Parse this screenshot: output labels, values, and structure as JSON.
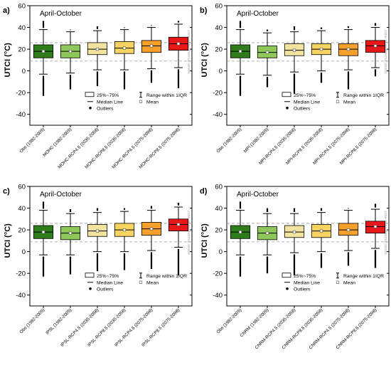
{
  "figure": {
    "axis_title": "UTCI (°C)",
    "yticks": [
      -40,
      -20,
      0,
      20,
      40,
      60
    ],
    "legend": {
      "box": "25%~75%",
      "median": "Median Line",
      "outliers": "Outliers",
      "range": "Range within 1IQR",
      "mean": "Mean"
    },
    "side_note": "zone of no thermal stress",
    "colors": {
      "obs": "#2e7d1a",
      "hist": "#8fc85a",
      "rcp45_2035": "#f3e3a0",
      "rcp85_2035": "#f7d462",
      "rcp45_2075": "#f5a02a",
      "rcp85_2075": "#e81818"
    }
  },
  "chart_data": [
    {
      "type": "box",
      "panel": "a)",
      "title": "April-October",
      "ylabel": "UTCI (°C)",
      "ylim": [
        -50,
        60
      ],
      "reference_lines": [
        9,
        26
      ],
      "categories": [
        "Obs (1982-2005)",
        "MOHC (1982-2005)",
        "MOHC-RCP4.5 (2035-2058)",
        "MOHC-RCP8.5 (2035-2058)",
        "MOHC-RCP4.5 (2075-2098)",
        "MOHC-RCP8.5 (2075-2098)"
      ],
      "series": [
        {
          "q1": 12,
          "median": 18,
          "q3": 24,
          "mean": 18,
          "whisker_low": -3,
          "whisker_high": 38,
          "outlier_min": -23,
          "outlier_max": 46
        },
        {
          "q1": 12,
          "median": 18,
          "q3": 24,
          "mean": 18,
          "whisker_low": -2,
          "whisker_high": 36,
          "outlier_min": -17,
          "outlier_max": 38
        },
        {
          "q1": 15,
          "median": 20,
          "q3": 26,
          "mean": 20,
          "whisker_low": 1,
          "whisker_high": 37,
          "outlier_min": -14,
          "outlier_max": 41
        },
        {
          "q1": 16,
          "median": 21,
          "q3": 27,
          "mean": 21,
          "whisker_low": 1,
          "whisker_high": 38,
          "outlier_min": -17,
          "outlier_max": 40
        },
        {
          "q1": 17,
          "median": 23,
          "q3": 28,
          "mean": 23,
          "whisker_low": 2,
          "whisker_high": 40,
          "outlier_min": -11,
          "outlier_max": 42
        },
        {
          "q1": 19,
          "median": 25,
          "q3": 31,
          "mean": 25,
          "whisker_low": 3,
          "whisker_high": 43,
          "outlier_min": -16,
          "outlier_max": 46
        }
      ]
    },
    {
      "type": "box",
      "panel": "b)",
      "title": "April-October",
      "ylabel": "UTCI (°C)",
      "ylim": [
        -50,
        60
      ],
      "reference_lines": [
        9,
        26
      ],
      "categories": [
        "Obs (1982-2005)",
        "MPI (1982-2005)",
        "MPI-RCP4.5 (2035-2058)",
        "MPI-RCP8.5 (2035-2058)",
        "MPI-RCP4.5 (2075-2098)",
        "MPI-RCP8.5 (2075-2098)"
      ],
      "series": [
        {
          "q1": 12,
          "median": 18,
          "q3": 24,
          "mean": 18,
          "whisker_low": -3,
          "whisker_high": 38,
          "outlier_min": -23,
          "outlier_max": 46
        },
        {
          "q1": 12,
          "median": 17,
          "q3": 23,
          "mean": 17,
          "whisker_low": -4,
          "whisker_high": 35,
          "outlier_min": -15,
          "outlier_max": 38
        },
        {
          "q1": 14,
          "median": 19,
          "q3": 25,
          "mean": 19,
          "whisker_low": -1,
          "whisker_high": 36,
          "outlier_min": -21,
          "outlier_max": 41
        },
        {
          "q1": 15,
          "median": 20,
          "q3": 25,
          "mean": 20,
          "whisker_low": 0,
          "whisker_high": 37,
          "outlier_min": -11,
          "outlier_max": 40
        },
        {
          "q1": 14,
          "median": 20,
          "q3": 25,
          "mean": 20,
          "whisker_low": 1,
          "whisker_high": 38,
          "outlier_min": -17,
          "outlier_max": 41
        },
        {
          "q1": 17,
          "median": 23,
          "q3": 28,
          "mean": 23,
          "whisker_low": 3,
          "whisker_high": 40,
          "outlier_min": -5,
          "outlier_max": 44
        }
      ]
    },
    {
      "type": "box",
      "panel": "c)",
      "title": "April-October",
      "ylabel": "UTCI (°C)",
      "ylim": [
        -50,
        60
      ],
      "reference_lines": [
        9,
        26
      ],
      "categories": [
        "Obs (1982-2005)",
        "IPSL (1982-2005)",
        "IPSL-RCP4.5 (2035-2058)",
        "IPSL-RCP8.5 (2035-2058)",
        "IPSL-RCP4.5 (2075-2098)",
        "IPSL-RCP8.5 (2075-2098)"
      ],
      "series": [
        {
          "q1": 12,
          "median": 18,
          "q3": 24,
          "mean": 18,
          "whisker_low": -3,
          "whisker_high": 38,
          "outlier_min": -23,
          "outlier_max": 46
        },
        {
          "q1": 11,
          "median": 17,
          "q3": 23,
          "mean": 17,
          "whisker_low": -3,
          "whisker_high": 35,
          "outlier_min": -21,
          "outlier_max": 39
        },
        {
          "q1": 14,
          "median": 19,
          "q3": 25,
          "mean": 19,
          "whisker_low": 0,
          "whisker_high": 36,
          "outlier_min": -18,
          "outlier_max": 40
        },
        {
          "q1": 14,
          "median": 20,
          "q3": 26,
          "mean": 20,
          "whisker_low": 0,
          "whisker_high": 37,
          "outlier_min": -17,
          "outlier_max": 40
        },
        {
          "q1": 15,
          "median": 21,
          "q3": 27,
          "mean": 21,
          "whisker_low": 1,
          "whisker_high": 38,
          "outlier_min": -16,
          "outlier_max": 42
        },
        {
          "q1": 19,
          "median": 25,
          "q3": 30,
          "mean": 25,
          "whisker_low": 4,
          "whisker_high": 41,
          "outlier_min": -22,
          "outlier_max": 45
        }
      ]
    },
    {
      "type": "box",
      "panel": "d)",
      "title": "April-October",
      "ylabel": "UTCI (°C)",
      "ylim": [
        -50,
        60
      ],
      "reference_lines": [
        9,
        26
      ],
      "categories": [
        "Obs (1982-2005)",
        "CNRM (1982-2005)",
        "CNRM-RCP4.5 (2035-2058)",
        "CNRM-RCP8.5 (2035-2058)",
        "CNRM-RCP4.5 (2075-2098)",
        "CNRM-RCP8.5 (2075-2098)"
      ],
      "series": [
        {
          "q1": 12,
          "median": 18,
          "q3": 24,
          "mean": 18,
          "whisker_low": -3,
          "whisker_high": 38,
          "outlier_min": -23,
          "outlier_max": 46
        },
        {
          "q1": 11,
          "median": 17,
          "q3": 23,
          "mean": 17,
          "whisker_low": -3,
          "whisker_high": 35,
          "outlier_min": -20,
          "outlier_max": 40
        },
        {
          "q1": 13,
          "median": 18,
          "q3": 24,
          "mean": 18,
          "whisker_low": -1,
          "whisker_high": 35,
          "outlier_min": -22,
          "outlier_max": 40
        },
        {
          "q1": 13,
          "median": 19,
          "q3": 25,
          "mean": 19,
          "whisker_low": 0,
          "whisker_high": 36,
          "outlier_min": -15,
          "outlier_max": 40
        },
        {
          "q1": 15,
          "median": 20,
          "q3": 26,
          "mean": 20,
          "whisker_low": 1,
          "whisker_high": 38,
          "outlier_min": -13,
          "outlier_max": 40
        },
        {
          "q1": 17,
          "median": 23,
          "q3": 28,
          "mean": 23,
          "whisker_low": 3,
          "whisker_high": 39,
          "outlier_min": -15,
          "outlier_max": 44
        }
      ]
    }
  ]
}
